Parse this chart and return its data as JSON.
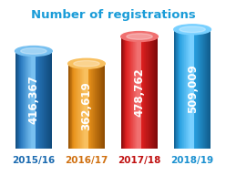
{
  "title": "Number of registrations",
  "title_color": "#1a9cd8",
  "categories": [
    "2015/16",
    "2016/17",
    "2017/18",
    "2018/19"
  ],
  "values": [
    416367,
    362619,
    478762,
    509009
  ],
  "labels": [
    "416,367",
    "362,619",
    "478,762",
    "509,009"
  ],
  "bar_colors_main": [
    "#2878be",
    "#e8921a",
    "#e02020",
    "#28a0e0"
  ],
  "bar_colors_dark": [
    "#0f4878",
    "#8a4800",
    "#7a0808",
    "#0f5888"
  ],
  "bar_colors_light": [
    "#78c0f0",
    "#f8c060",
    "#f07070",
    "#78d0ff"
  ],
  "background_color": "#ffffff",
  "label_color": "#ffffff",
  "xlabel_colors": [
    "#1a6ab0",
    "#d07010",
    "#c01010",
    "#1a90d0"
  ],
  "bar_width": 0.7,
  "ellipse_ratio": 0.12,
  "scale": 1.0,
  "label_fontsize": 8.5,
  "xlabel_fontsize": 7.5,
  "title_fontsize": 9.5
}
